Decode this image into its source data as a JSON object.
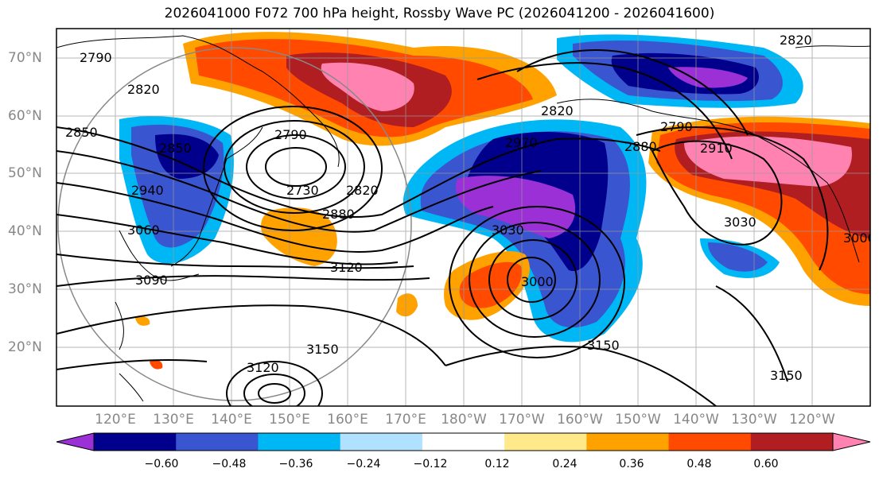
{
  "title": "2026041000 F072 700 hPa height, Rossby Wave PC (2026041200 - 2026041600)",
  "lat_labels": [
    "70°N",
    "60°N",
    "50°N",
    "40°N",
    "30°N",
    "20°N"
  ],
  "lon_labels": [
    "120°E",
    "130°E",
    "140°E",
    "150°E",
    "160°E",
    "170°E",
    "180°W",
    "170°W",
    "160°W",
    "150°W",
    "140°W",
    "130°W",
    "120°W"
  ],
  "contour_labels": [
    "2790",
    "2820",
    "2850",
    "2790",
    "2730",
    "2820",
    "2880",
    "2940",
    "3060",
    "3090",
    "3120",
    "2850",
    "2820",
    "2970",
    "2880",
    "2910",
    "2790",
    "3030",
    "3000",
    "3030",
    "3000",
    "3150",
    "3120",
    "3150",
    "3150",
    "2820"
  ],
  "colorbar": {
    "ticks": [
      "−0.60",
      "−0.48",
      "−0.36",
      "−0.24",
      "−0.12",
      "0.12",
      "0.24",
      "0.36",
      "0.48",
      "0.60"
    ],
    "colors": [
      "#9b30d6",
      "#00008c",
      "#3a55d0",
      "#00b7f5",
      "#b0e2ff",
      "#ffffff",
      "#ffe98a",
      "#ffa200",
      "#ff4a00",
      "#b01e22",
      "#ff82b0"
    ]
  }
}
